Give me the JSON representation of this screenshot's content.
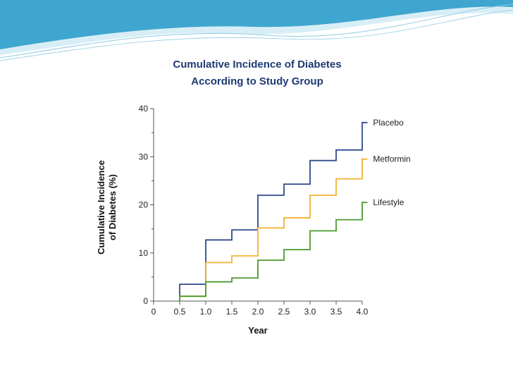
{
  "colors": {
    "header_wave_light": "#d8eef6",
    "header_wave_mid": "#8fcbe3",
    "header_wave_dark": "#3fa6cf",
    "title": "#1f3a73"
  },
  "chart_data": {
    "type": "line",
    "step": true,
    "title_lines": [
      "Cumulative Incidence of Diabetes",
      "According to Study Group"
    ],
    "xlabel": "Year",
    "ylabel_lines": [
      "Cumulative Incidence",
      "of Diabetes (%)"
    ],
    "xlim": [
      0,
      4.0
    ],
    "ylim": [
      0,
      40
    ],
    "x_ticks": [
      0,
      0.5,
      1.0,
      1.5,
      2.0,
      2.5,
      3.0,
      3.5,
      4.0
    ],
    "x_tick_labels": [
      "0",
      "0.5",
      "1.0",
      "1.5",
      "2.0",
      "2.5",
      "3.0",
      "3.5",
      "4.0"
    ],
    "y_ticks": [
      0,
      10,
      20,
      30,
      40
    ],
    "y_tick_labels": [
      "0",
      "10",
      "20",
      "30",
      "40"
    ],
    "grid": false,
    "legend": "labels at line ends",
    "series": [
      {
        "name": "Placebo",
        "color": "#2e4a8c",
        "x": [
          0.5,
          1.0,
          1.5,
          2.0,
          2.5,
          3.0,
          3.5,
          4.0,
          4.1
        ],
        "y": [
          3.5,
          12.7,
          14.8,
          22.0,
          24.3,
          29.2,
          31.4,
          37.1,
          37.1
        ]
      },
      {
        "name": "Metformin",
        "color": "#f2b233",
        "x": [
          0.5,
          1.0,
          1.5,
          2.0,
          2.5,
          3.0,
          3.5,
          4.0,
          4.1
        ],
        "y": [
          1.0,
          8.0,
          9.4,
          15.2,
          17.3,
          22.0,
          25.4,
          29.5,
          29.5
        ]
      },
      {
        "name": "Lifestyle",
        "color": "#4a9a2e",
        "x": [
          0.5,
          1.0,
          1.5,
          2.0,
          2.5,
          3.0,
          3.5,
          4.0,
          4.1
        ],
        "y": [
          1.0,
          4.0,
          4.8,
          8.5,
          10.7,
          14.6,
          16.9,
          20.5,
          20.5
        ]
      }
    ]
  }
}
